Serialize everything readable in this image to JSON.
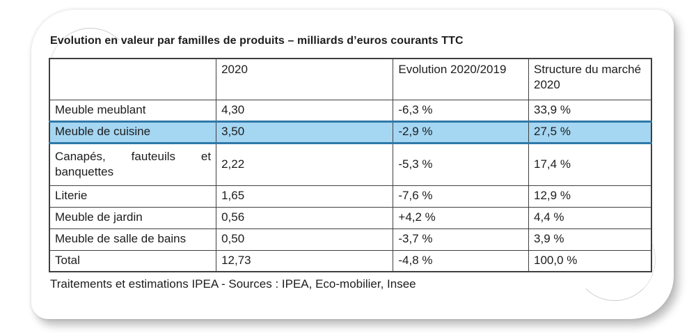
{
  "page": {
    "title": "Evolution en valeur par familles de produits – milliards d’euros courants TTC",
    "footer_note": "Traitements et estimations IPEA - Sources : IPEA, Eco-mobilier, Insee"
  },
  "table": {
    "column_headers": [
      "",
      "2020",
      "Evolution 2020/2019",
      "Structure du marché 2020"
    ],
    "rows": [
      {
        "label": "Meuble meublant",
        "value_2020": "4,30",
        "evolution_2020_2019": "-6,3 %",
        "structure_marche_2020": "33,9 %",
        "highlighted": false
      },
      {
        "label": "Meuble de cuisine",
        "value_2020": "3,50",
        "evolution_2020_2019": "-2,9 %",
        "structure_marche_2020": "27,5 %",
        "highlighted": true
      },
      {
        "label": "Canapés, fauteuils et banquettes",
        "value_2020": "2,22",
        "evolution_2020_2019": "-5,3 %",
        "structure_marche_2020": "17,4 %",
        "highlighted": false
      },
      {
        "label": "Literie",
        "value_2020": "1,65",
        "evolution_2020_2019": "-7,6 %",
        "structure_marche_2020": "12,9 %",
        "highlighted": false
      },
      {
        "label": "Meuble de jardin",
        "value_2020": "0,56",
        "evolution_2020_2019": "+4,2 %",
        "structure_marche_2020": "4,4 %",
        "highlighted": false
      },
      {
        "label": "Meuble de salle de bains",
        "value_2020": "0,50",
        "evolution_2020_2019": "-3,7 %",
        "structure_marche_2020": "3,9 %",
        "highlighted": false
      },
      {
        "label": "Total",
        "value_2020": "12,73",
        "evolution_2020_2019": "-4,8 %",
        "structure_marche_2020": "100,0 %",
        "highlighted": false
      }
    ]
  },
  "colors": {
    "text": "#1c1c1c",
    "table_border": "#3f3f3f",
    "highlight_fill": "#a5d6f2",
    "highlight_border": "#2e78a8"
  }
}
